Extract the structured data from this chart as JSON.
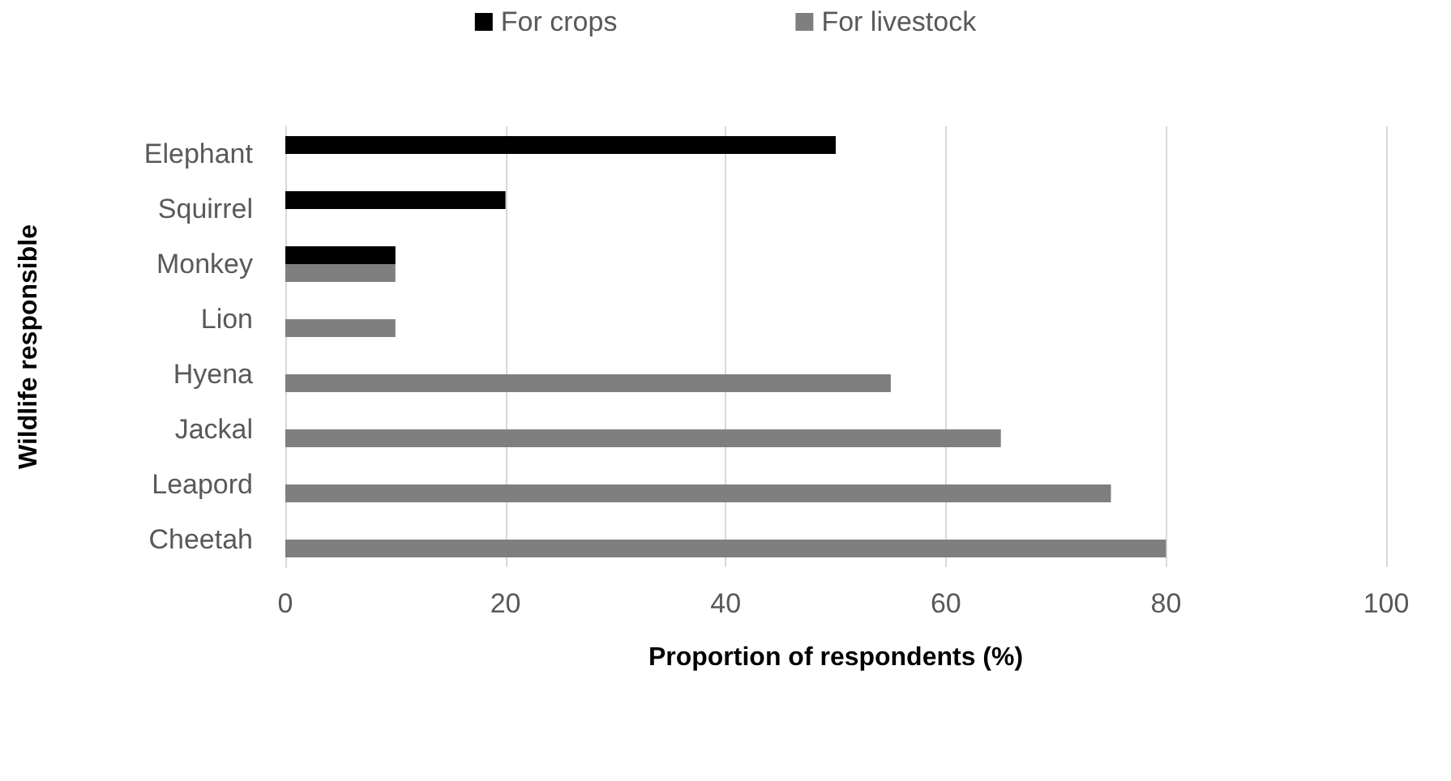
{
  "chart_data": {
    "type": "bar",
    "orientation": "horizontal",
    "xlabel": "Proportion of respondents (%)",
    "ylabel": "Wildlife responsible",
    "categories": [
      "Elephant",
      "Squirrel",
      "Monkey",
      "Lion",
      "Hyena",
      "Jackal",
      "Leapord",
      "Cheetah"
    ],
    "series": [
      {
        "name": "For crops",
        "color": "#000000",
        "values": [
          50,
          20,
          10,
          null,
          null,
          null,
          null,
          null
        ]
      },
      {
        "name": "For livestock",
        "color": "#7f7f7f",
        "values": [
          null,
          null,
          10,
          10,
          55,
          65,
          75,
          80
        ]
      }
    ],
    "xlim": [
      0,
      100
    ],
    "xticks": [
      0,
      20,
      40,
      60,
      80,
      100
    ],
    "grid": "x",
    "legend": "top"
  }
}
